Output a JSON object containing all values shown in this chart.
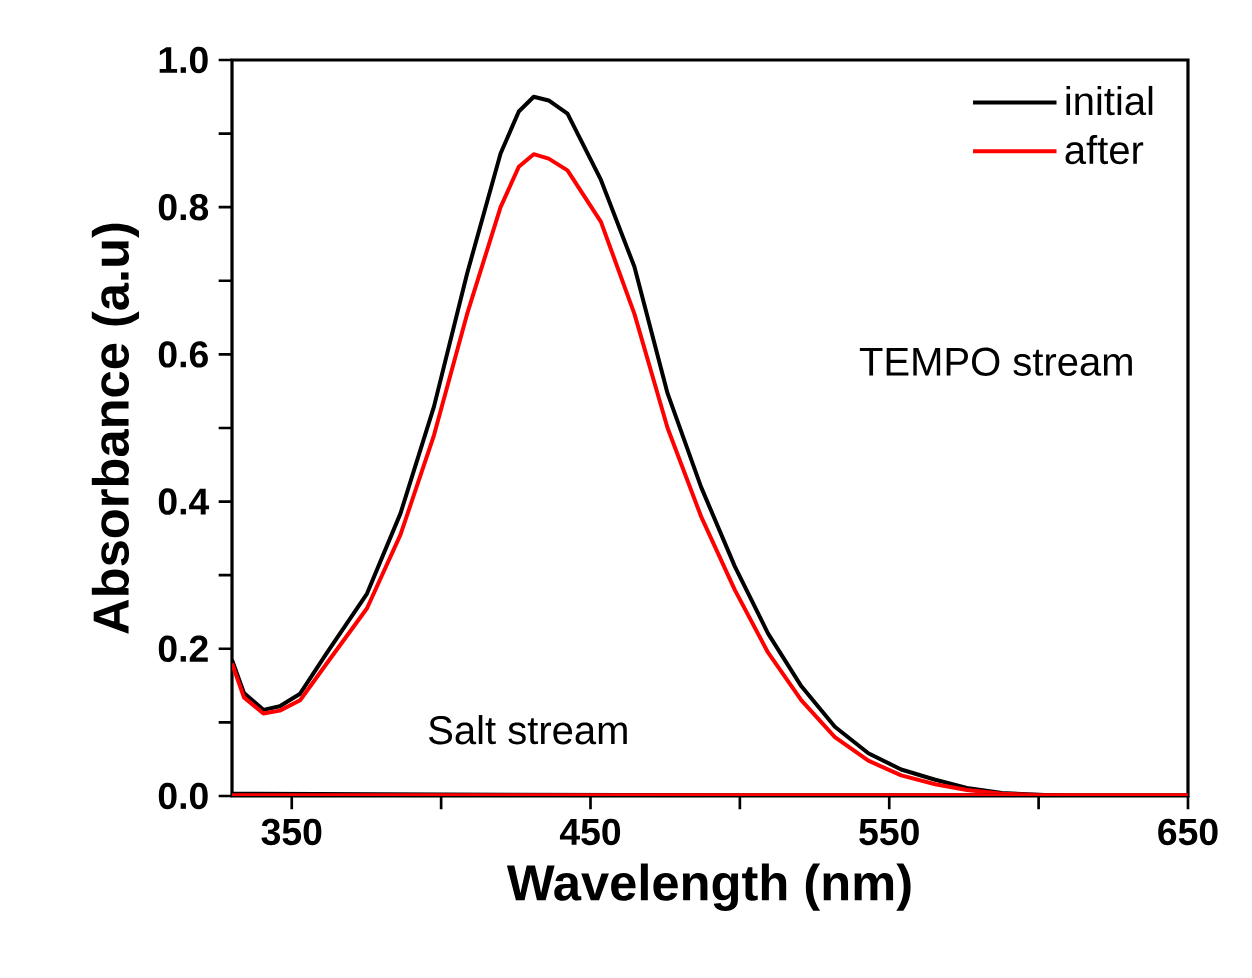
{
  "chart_data": {
    "type": "line",
    "xlabel": "Wavelength (nm)",
    "ylabel": "Absorbance (a.u)",
    "xlim": [
      330,
      650
    ],
    "ylim": [
      0,
      1.0
    ],
    "xticks": [
      350,
      {
        "value": 400,
        "label": null
      },
      450,
      {
        "value": 500,
        "label": null
      },
      550,
      {
        "value": 600,
        "label": null
      },
      650
    ],
    "yticks": [
      {
        "value": 0,
        "label": "0.0"
      },
      {
        "value": 0.1,
        "label": null
      },
      {
        "value": 0.2,
        "label": "0.2"
      },
      {
        "value": 0.3,
        "label": null
      },
      {
        "value": 0.4,
        "label": "0.4"
      },
      {
        "value": 0.5,
        "label": null
      },
      {
        "value": 0.6,
        "label": "0.6"
      },
      {
        "value": 0.7,
        "label": null
      },
      {
        "value": 0.8,
        "label": "0.8"
      },
      {
        "value": 0.9,
        "label": null
      },
      {
        "value": 1.0,
        "label": "1.0"
      }
    ],
    "legend": "top right",
    "grid": false,
    "marker": "none",
    "line_style": "solid",
    "series": [
      {
        "name": "initial",
        "color": "#000000",
        "x": [
          330,
          334,
          340.5,
          346,
          352.8,
          361.7,
          375.2,
          386.4,
          397.6,
          408.7,
          419.9,
          426,
          431,
          436,
          442.3,
          453.5,
          464.7,
          475.8,
          487,
          498.3,
          509.4,
          520.6,
          531.8,
          543,
          554,
          565.4,
          576,
          587.7,
          610,
          650
        ],
        "values": [
          0.185,
          0.14,
          0.117,
          0.122,
          0.139,
          0.194,
          0.275,
          0.384,
          0.529,
          0.71,
          0.873,
          0.93,
          0.95,
          0.945,
          0.927,
          0.837,
          0.719,
          0.547,
          0.42,
          0.312,
          0.221,
          0.149,
          0.094,
          0.058,
          0.036,
          0.022,
          0.011,
          0.004,
          0,
          0
        ]
      },
      {
        "name": "after",
        "color": "#ff0000",
        "x": [
          330,
          334,
          340.5,
          346,
          352.8,
          361.7,
          375.2,
          386.4,
          397.6,
          408.7,
          419.9,
          426,
          431,
          436,
          442.3,
          453.5,
          464.7,
          475.8,
          487,
          498.3,
          509.4,
          520.6,
          531.8,
          543,
          554,
          565.4,
          576,
          587.7,
          610,
          650
        ],
        "values": [
          0.18,
          0.134,
          0.112,
          0.116,
          0.13,
          0.18,
          0.255,
          0.355,
          0.49,
          0.655,
          0.8,
          0.855,
          0.872,
          0.866,
          0.85,
          0.78,
          0.655,
          0.5,
          0.38,
          0.28,
          0.195,
          0.13,
          0.08,
          0.048,
          0.028,
          0.016,
          0.008,
          0.003,
          0,
          0
        ]
      },
      {
        "color": "#000000",
        "x": [
          330,
          400,
          500,
          650
        ],
        "values": [
          0.003,
          0.002,
          0.001,
          0.001
        ]
      },
      {
        "color": "#ff0000",
        "x": [
          330,
          400,
          500,
          650
        ],
        "values": [
          0.001,
          0.001,
          0.001,
          0.001
        ]
      }
    ],
    "annotations": [
      "TEMPO stream",
      "Salt stream"
    ]
  }
}
